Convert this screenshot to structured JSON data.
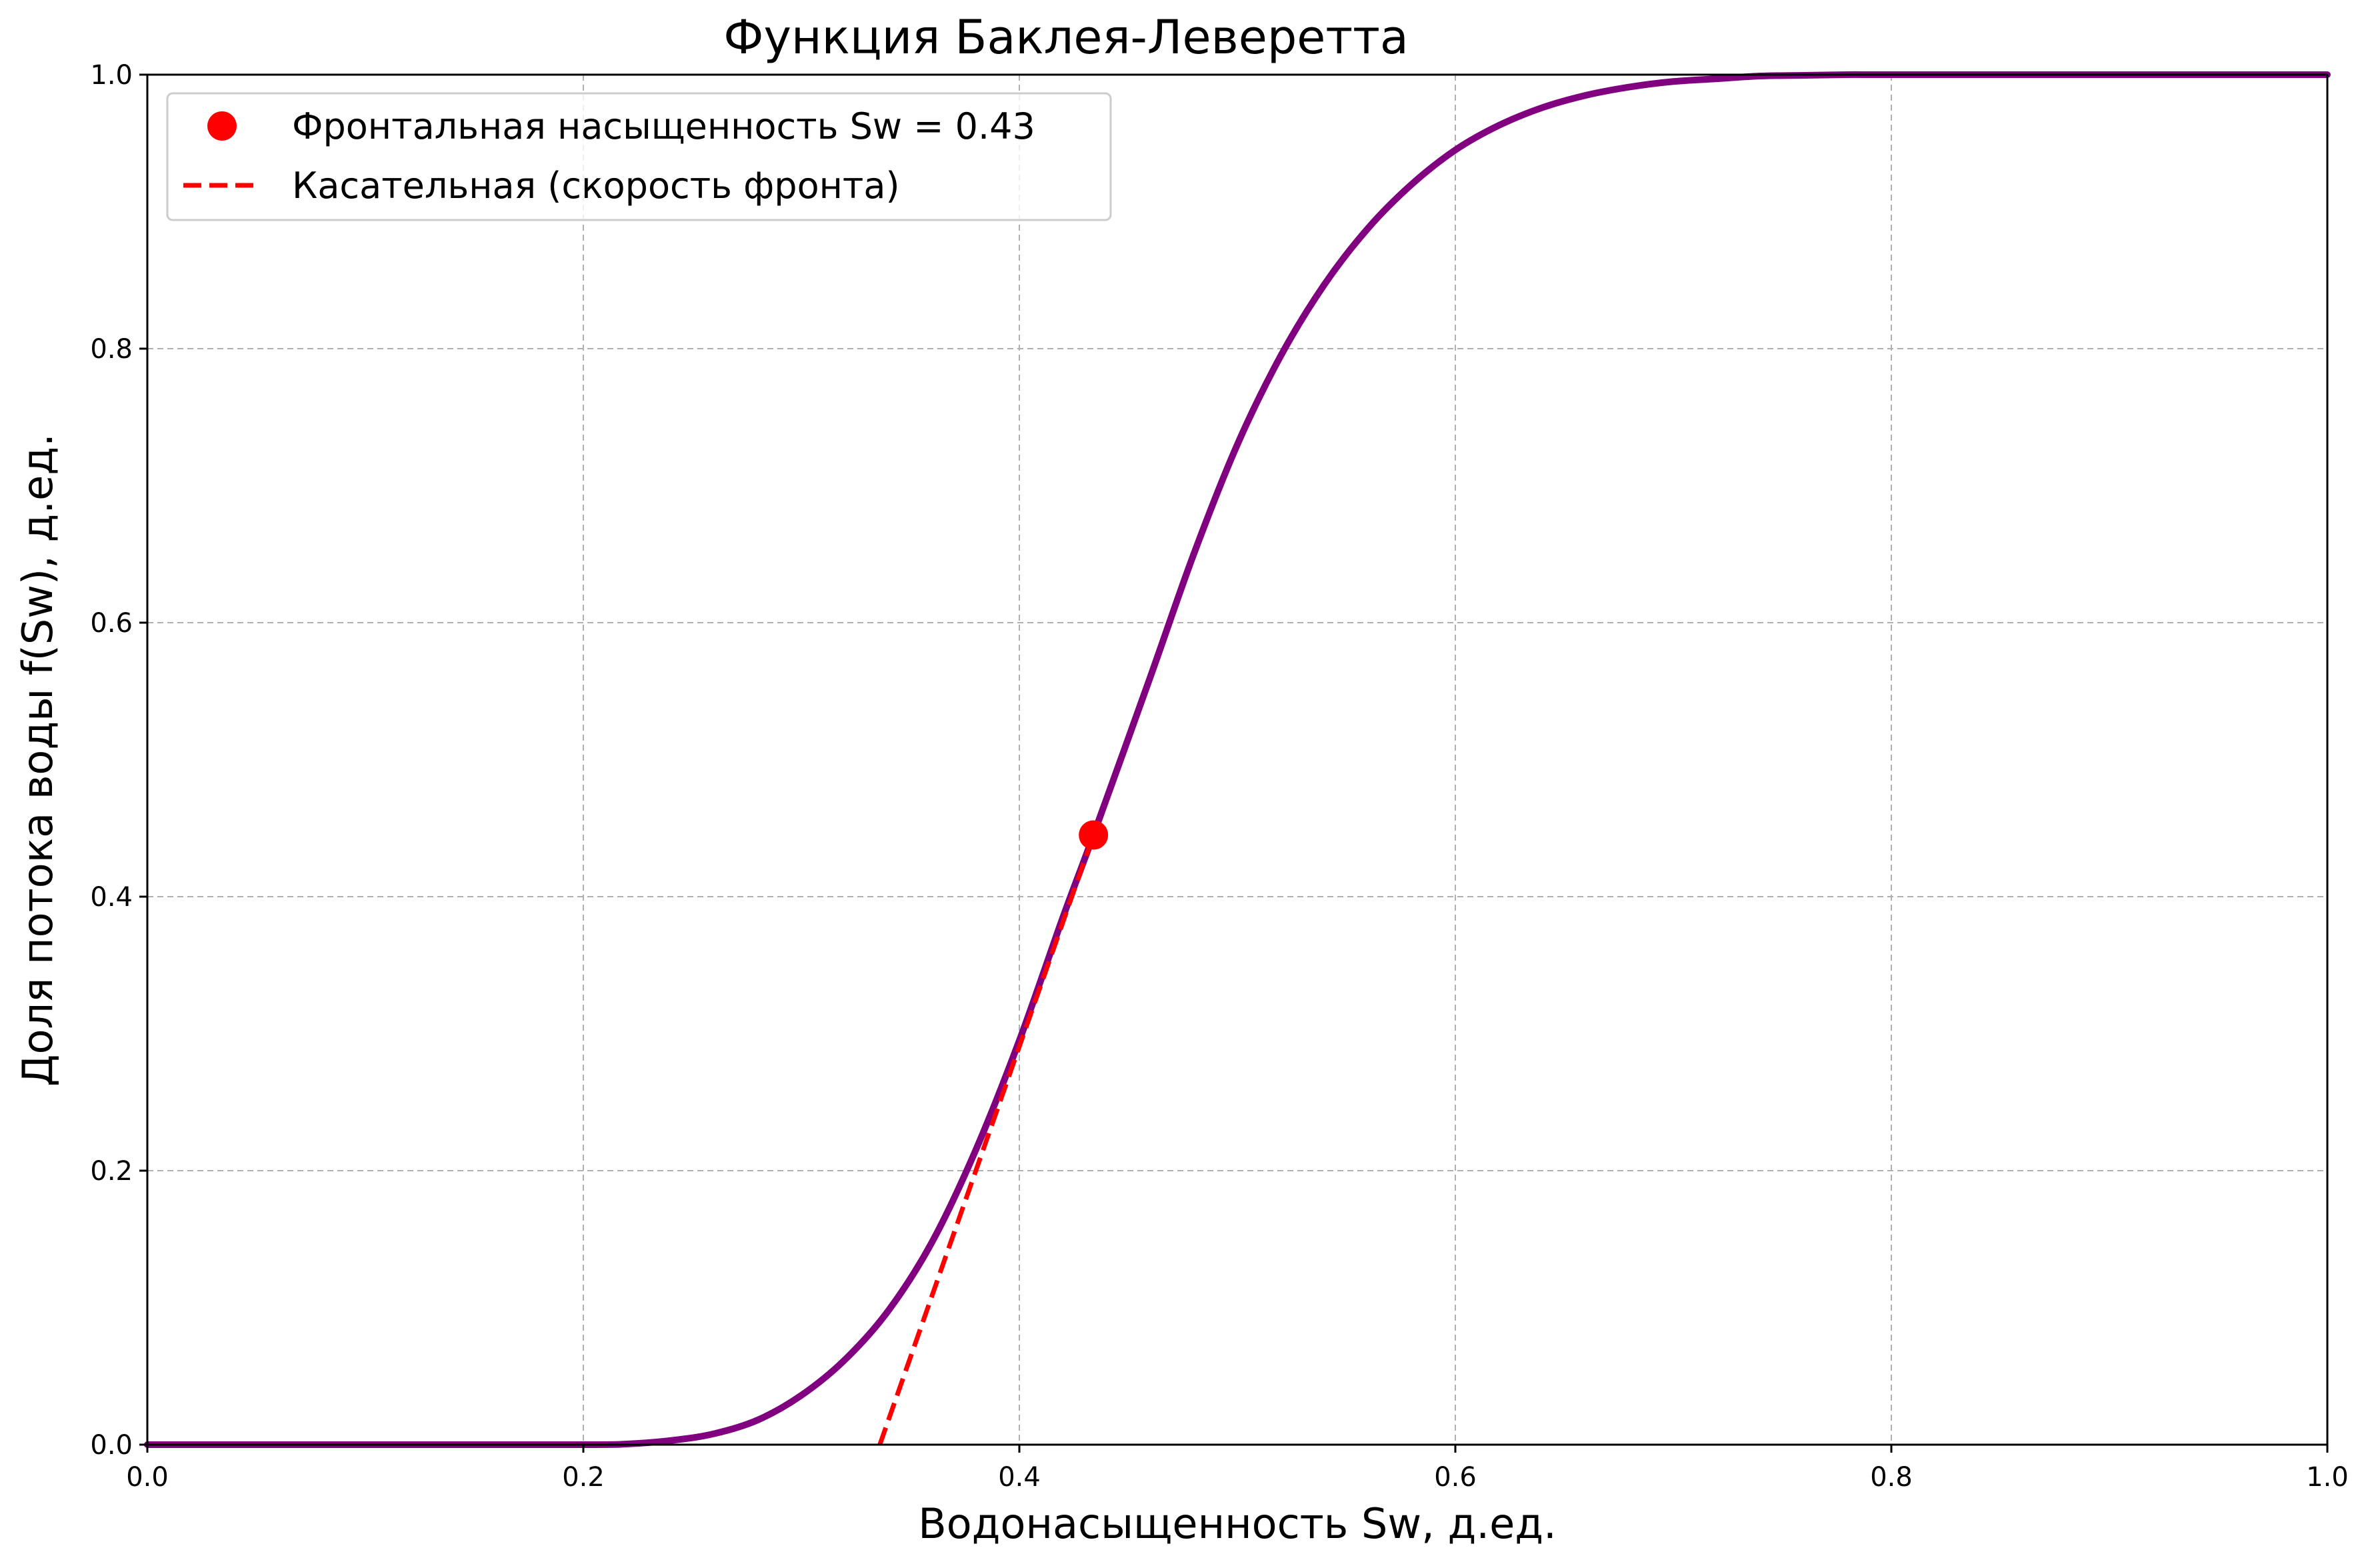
{
  "chart_data": {
    "type": "line",
    "title": "Функция Баклея-Леверетта",
    "xlabel": "Водонасыщенность Sw, д.ед.",
    "ylabel": "Доля потока воды f(Sw), д.ед.",
    "xlim": [
      0.0,
      1.0
    ],
    "ylim": [
      0.0,
      1.0
    ],
    "xticks": [
      "0.0",
      "0.2",
      "0.4",
      "0.6",
      "0.8",
      "1.0"
    ],
    "yticks": [
      "0.0",
      "0.2",
      "0.4",
      "0.6",
      "0.8",
      "1.0"
    ],
    "grid": true,
    "legend_position": "top-left",
    "series": [
      {
        "kind": "curve",
        "color": "#800080",
        "x": [
          0.0,
          0.1,
          0.2,
          0.22,
          0.24,
          0.26,
          0.28,
          0.3,
          0.32,
          0.34,
          0.36,
          0.38,
          0.4,
          0.42,
          0.434,
          0.46,
          0.48,
          0.5,
          0.52,
          0.54,
          0.56,
          0.58,
          0.6,
          0.62,
          0.64,
          0.66,
          0.68,
          0.7,
          0.72,
          0.74,
          0.76,
          0.78,
          0.8,
          0.9,
          1.0
        ],
        "y": [
          0.0,
          0.0,
          0.0,
          0.0005,
          0.003,
          0.008,
          0.018,
          0.036,
          0.062,
          0.098,
          0.148,
          0.215,
          0.295,
          0.385,
          0.445,
          0.56,
          0.65,
          0.73,
          0.795,
          0.847,
          0.888,
          0.92,
          0.945,
          0.963,
          0.976,
          0.985,
          0.991,
          0.995,
          0.997,
          0.999,
          0.9995,
          1.0,
          1.0,
          1.0,
          1.0
        ]
      },
      {
        "kind": "tangent",
        "name": "Касательная (скорость фронта)",
        "color": "#ff0000",
        "x": [
          0.336,
          0.434
        ],
        "y": [
          0.0,
          0.445
        ]
      },
      {
        "kind": "point",
        "name": "Фронтальная насыщенность Sw = 0.43",
        "color": "#ff0000",
        "x": [
          0.434
        ],
        "y": [
          0.445
        ]
      }
    ]
  }
}
